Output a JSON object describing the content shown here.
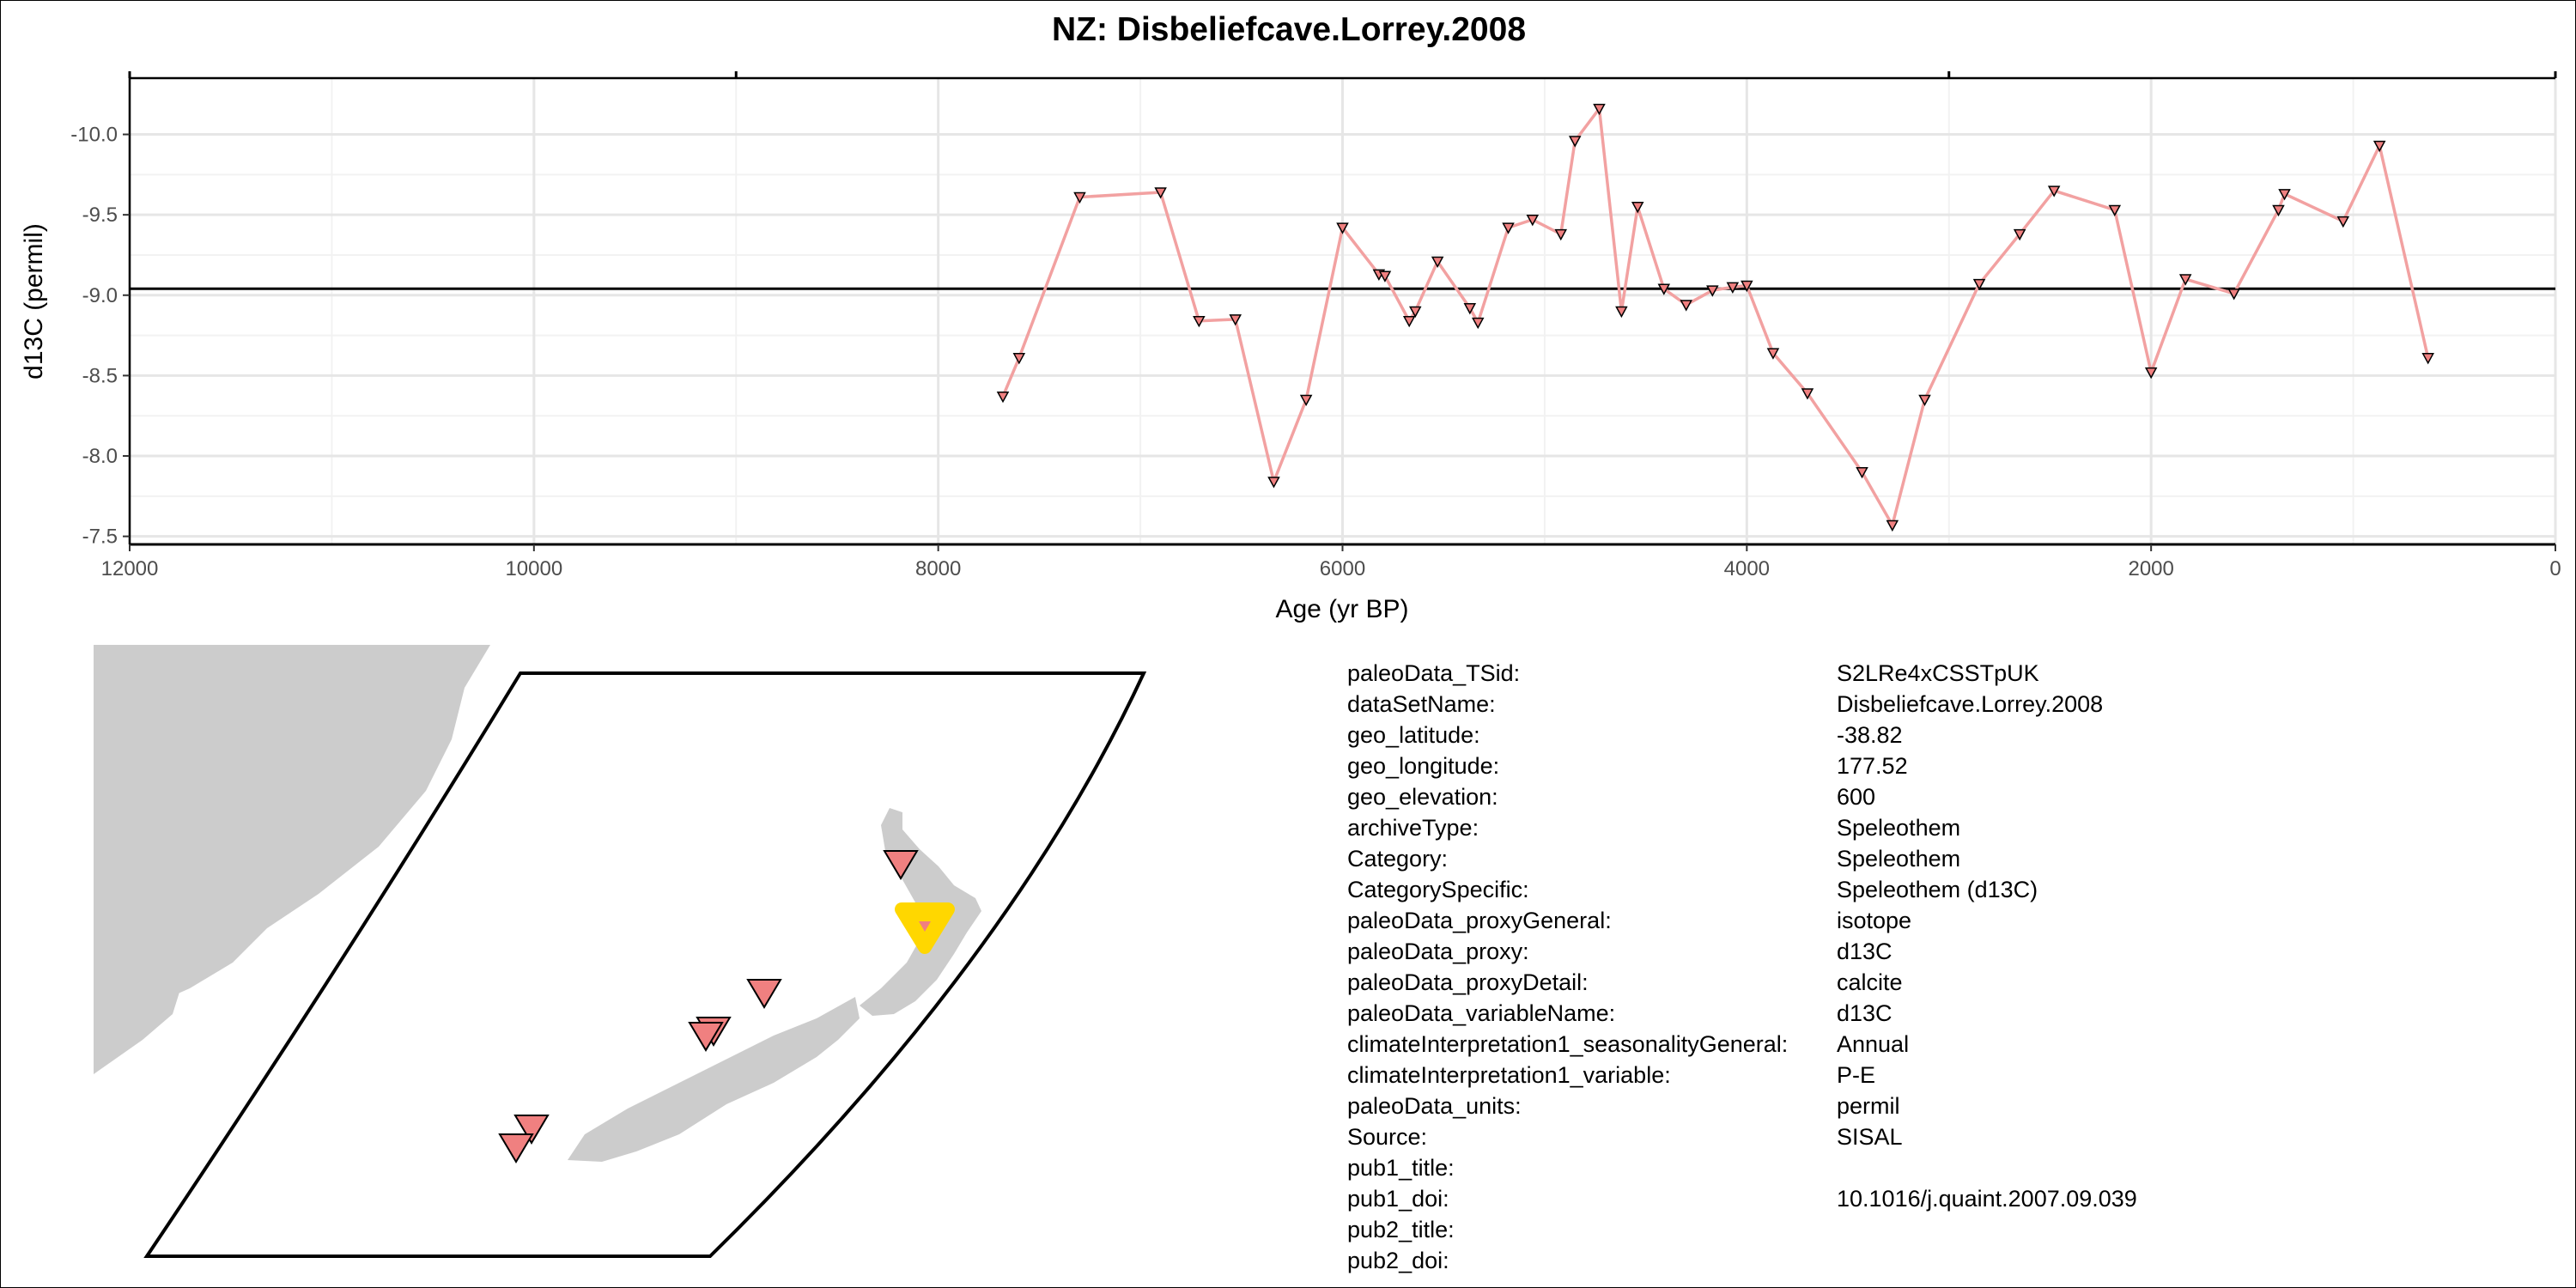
{
  "title": "NZ: Disbeliefcave.Lorrey.2008",
  "chart_data": {
    "type": "line",
    "title": "NZ: Disbeliefcave.Lorrey.2008",
    "xlabel": "Age (yr BP)",
    "ylabel": "d13C (permil)",
    "xlim": [
      12000,
      0
    ],
    "ylim": [
      -7.45,
      -10.35
    ],
    "x_reversed": true,
    "y_reversed": true,
    "xticks": [
      12000,
      10000,
      8000,
      6000,
      4000,
      2000,
      0
    ],
    "xtick_labels": [
      "12000",
      "10000",
      "8000",
      "6000",
      "4000",
      "2000",
      "0"
    ],
    "yticks": [
      -10.0,
      -9.5,
      -9.0,
      -8.5,
      -8.0,
      -7.5
    ],
    "ytick_labels": [
      "-10.0",
      "-9.5",
      "-9.0",
      "-8.5",
      "-8.0",
      "-7.5"
    ],
    "grid": true,
    "reference_line": {
      "y": -9.04
    },
    "series_color": "#f2a1a1",
    "marker_color": "#f08080",
    "series": [
      {
        "x": [
          7680,
          7600,
          7300,
          6900,
          6710,
          6530,
          6340,
          6180,
          6000,
          5820,
          5790,
          5670,
          5640,
          5530,
          5370,
          5330,
          5180,
          5060,
          4920,
          4850,
          4730,
          4620,
          4540,
          4410,
          4300,
          4170,
          4070,
          4000,
          3870,
          3700,
          3430,
          3280,
          3120,
          2850,
          2650,
          2480,
          2180,
          2000,
          1830,
          1590,
          1370,
          1340,
          1050,
          870,
          630
        ],
        "y": [
          -8.37,
          -8.61,
          -9.61,
          -9.64,
          -8.84,
          -8.85,
          -7.84,
          -8.35,
          -9.42,
          -9.13,
          -9.12,
          -8.84,
          -8.9,
          -9.21,
          -8.92,
          -8.83,
          -9.42,
          -9.47,
          -9.38,
          -9.96,
          -10.16,
          -8.9,
          -9.55,
          -9.04,
          -8.94,
          -9.03,
          -9.05,
          -9.06,
          -8.64,
          -8.39,
          -7.9,
          -7.57,
          -8.35,
          -9.07,
          -9.38,
          -9.65,
          -9.53,
          -8.52,
          -9.1,
          -9.01,
          -9.53,
          -9.63,
          -9.46,
          -9.93,
          -8.61
        ]
      }
    ]
  },
  "map": {
    "land_color": "#cccccc",
    "marker_color": "#f08080",
    "highlight_color": "#ffd700"
  },
  "metadata": [
    {
      "key": "paleoData_TSid:",
      "value": "S2LRe4xCSSTpUK"
    },
    {
      "key": "dataSetName:",
      "value": "Disbeliefcave.Lorrey.2008"
    },
    {
      "key": "geo_latitude:",
      "value": "-38.82"
    },
    {
      "key": "geo_longitude:",
      "value": "177.52"
    },
    {
      "key": "geo_elevation:",
      "value": "600"
    },
    {
      "key": "archiveType:",
      "value": "Speleothem"
    },
    {
      "key": "Category:",
      "value": "Speleothem"
    },
    {
      "key": "CategorySpecific:",
      "value": "Speleothem (d13C)"
    },
    {
      "key": "paleoData_proxyGeneral:",
      "value": "isotope"
    },
    {
      "key": "paleoData_proxy:",
      "value": "d13C"
    },
    {
      "key": "paleoData_proxyDetail:",
      "value": "calcite"
    },
    {
      "key": "paleoData_variableName:",
      "value": "d13C"
    },
    {
      "key": "climateInterpretation1_seasonalityGeneral:",
      "value": "Annual"
    },
    {
      "key": "climateInterpretation1_variable:",
      "value": "P-E"
    },
    {
      "key": "paleoData_units:",
      "value": "permil"
    },
    {
      "key": "Source:",
      "value": "SISAL"
    },
    {
      "key": "pub1_title:",
      "value": ""
    },
    {
      "key": "pub1_doi:",
      "value": "10.1016/j.quaint.2007.09.039"
    },
    {
      "key": "pub2_title:",
      "value": ""
    },
    {
      "key": "pub2_doi:",
      "value": ""
    }
  ]
}
